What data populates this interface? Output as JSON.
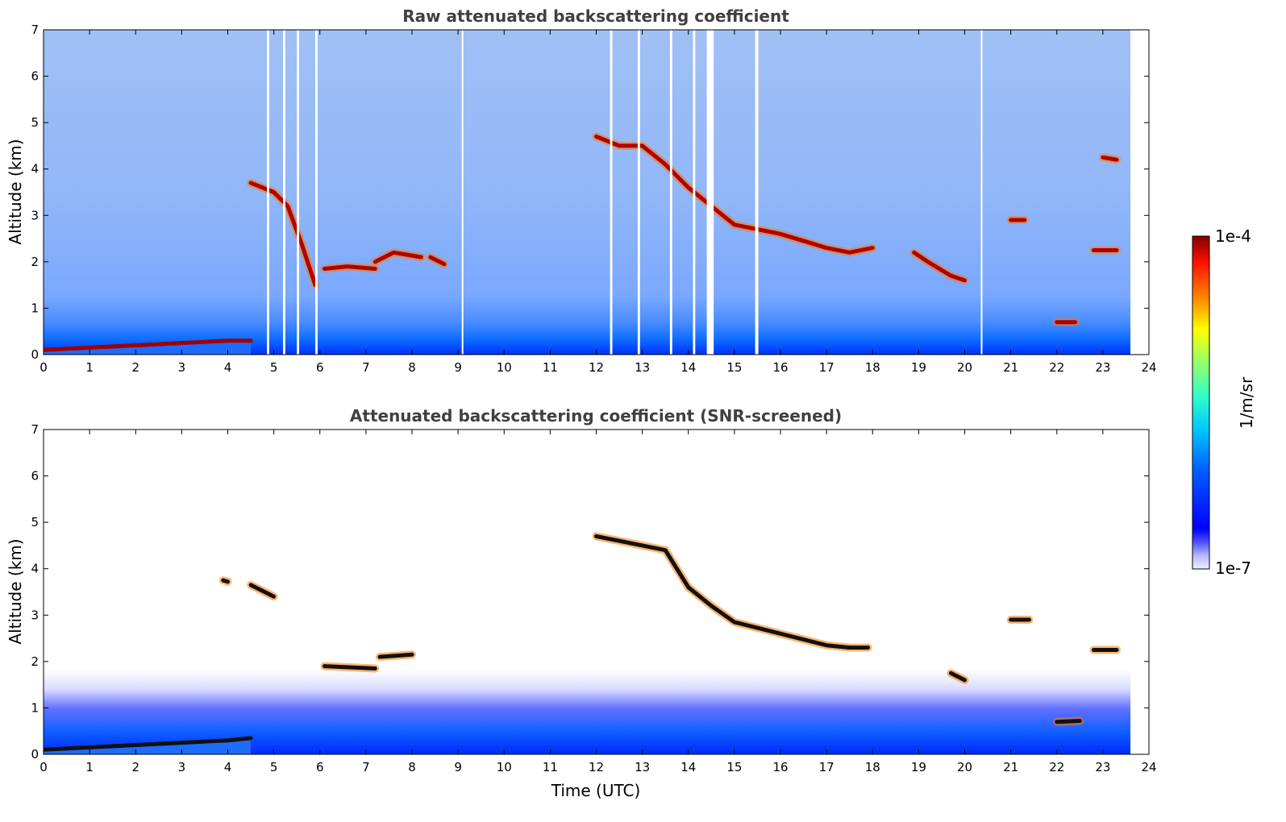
{
  "chart_data": [
    {
      "type": "heatmap",
      "title": "Raw attenuated backscattering coefficient",
      "xlabel": "",
      "ylabel": "Altitude (km)",
      "xlim": [
        0,
        24
      ],
      "ylim": [
        0,
        7
      ],
      "x_ticks": [
        "0",
        "1",
        "2",
        "3",
        "4",
        "5",
        "6",
        "7",
        "8",
        "9",
        "10",
        "11",
        "12",
        "13",
        "14",
        "15",
        "16",
        "17",
        "18",
        "19",
        "20",
        "21",
        "22",
        "23",
        "24"
      ],
      "y_ticks": [
        "0",
        "1",
        "2",
        "3",
        "4",
        "5",
        "6",
        "7"
      ],
      "data_end_time": 23.6,
      "gaps": [
        [
          4.85,
          4.9
        ],
        [
          5.2,
          5.25
        ],
        [
          5.5,
          5.55
        ],
        [
          5.9,
          5.95
        ],
        [
          9.08,
          9.1
        ],
        [
          12.3,
          12.35
        ],
        [
          12.9,
          12.95
        ],
        [
          13.6,
          13.65
        ],
        [
          14.1,
          14.15
        ],
        [
          14.4,
          14.55
        ],
        [
          15.45,
          15.52
        ],
        [
          20.35,
          20.38
        ]
      ],
      "layers": [
        {
          "kind": "aerosol_top",
          "points": [
            [
              0,
              0.1
            ],
            [
              1,
              0.15
            ],
            [
              2,
              0.2
            ],
            [
              3,
              0.25
            ],
            [
              4,
              0.3
            ],
            [
              4.5,
              0.3
            ]
          ]
        },
        {
          "kind": "cloud",
          "points": [
            [
              4.5,
              3.7
            ],
            [
              5.0,
              3.5
            ],
            [
              5.3,
              3.2
            ],
            [
              5.6,
              2.4
            ],
            [
              5.9,
              1.5
            ]
          ]
        },
        {
          "kind": "cloud",
          "points": [
            [
              6.1,
              1.85
            ],
            [
              6.6,
              1.9
            ],
            [
              7.2,
              1.85
            ]
          ]
        },
        {
          "kind": "cloud",
          "points": [
            [
              7.2,
              2.0
            ],
            [
              7.6,
              2.2
            ],
            [
              8.2,
              2.1
            ]
          ]
        },
        {
          "kind": "cloud",
          "points": [
            [
              8.4,
              2.1
            ],
            [
              8.7,
              1.95
            ]
          ]
        },
        {
          "kind": "cloud",
          "points": [
            [
              12.0,
              4.7
            ],
            [
              12.5,
              4.5
            ],
            [
              13.0,
              4.5
            ],
            [
              13.5,
              4.1
            ],
            [
              14.0,
              3.6
            ],
            [
              14.5,
              3.2
            ],
            [
              15.0,
              2.8
            ],
            [
              15.5,
              2.7
            ],
            [
              16.0,
              2.6
            ],
            [
              16.5,
              2.45
            ],
            [
              17.0,
              2.3
            ],
            [
              17.5,
              2.2
            ],
            [
              18.0,
              2.3
            ]
          ]
        },
        {
          "kind": "cloud",
          "points": [
            [
              18.9,
              2.2
            ],
            [
              19.2,
              2.0
            ],
            [
              19.7,
              1.7
            ],
            [
              20.0,
              1.6
            ]
          ]
        },
        {
          "kind": "cloud",
          "points": [
            [
              21.0,
              2.9
            ],
            [
              21.3,
              2.9
            ]
          ]
        },
        {
          "kind": "cloud",
          "points": [
            [
              22.8,
              2.25
            ],
            [
              23.3,
              2.25
            ]
          ]
        },
        {
          "kind": "cloud",
          "points": [
            [
              22.0,
              0.7
            ],
            [
              22.4,
              0.7
            ]
          ]
        },
        {
          "kind": "cloud",
          "points": [
            [
              23.0,
              4.25
            ],
            [
              23.3,
              4.2
            ]
          ]
        }
      ]
    },
    {
      "type": "heatmap",
      "title": "Attenuated backscattering coefficient (SNR-screened)",
      "xlabel": "Time (UTC)",
      "ylabel": "Altitude (km)",
      "xlim": [
        0,
        24
      ],
      "ylim": [
        0,
        7
      ],
      "x_ticks": [
        "0",
        "1",
        "2",
        "3",
        "4",
        "5",
        "6",
        "7",
        "8",
        "9",
        "10",
        "11",
        "12",
        "13",
        "14",
        "15",
        "16",
        "17",
        "18",
        "19",
        "20",
        "21",
        "22",
        "23",
        "24"
      ],
      "y_ticks": [
        "0",
        "1",
        "2",
        "3",
        "4",
        "5",
        "6",
        "7"
      ],
      "data_end_time": 23.6,
      "layers": [
        {
          "kind": "aerosol_top",
          "points": [
            [
              0,
              0.1
            ],
            [
              1,
              0.15
            ],
            [
              2,
              0.2
            ],
            [
              3,
              0.25
            ],
            [
              4,
              0.3
            ],
            [
              4.5,
              0.35
            ]
          ]
        },
        {
          "kind": "saturated",
          "points": [
            [
              3.9,
              3.75
            ],
            [
              4.0,
              3.72
            ]
          ]
        },
        {
          "kind": "saturated",
          "points": [
            [
              4.5,
              3.65
            ],
            [
              5.0,
              3.4
            ]
          ]
        },
        {
          "kind": "saturated",
          "points": [
            [
              6.1,
              1.9
            ],
            [
              7.2,
              1.85
            ]
          ]
        },
        {
          "kind": "saturated",
          "points": [
            [
              7.3,
              2.1
            ],
            [
              8.0,
              2.15
            ]
          ]
        },
        {
          "kind": "saturated",
          "points": [
            [
              12.0,
              4.7
            ],
            [
              13.5,
              4.4
            ],
            [
              14.0,
              3.6
            ],
            [
              14.5,
              3.2
            ],
            [
              15.0,
              2.85
            ],
            [
              16.0,
              2.6
            ],
            [
              17.0,
              2.35
            ],
            [
              17.5,
              2.3
            ],
            [
              17.9,
              2.3
            ]
          ]
        },
        {
          "kind": "saturated",
          "points": [
            [
              19.7,
              1.75
            ],
            [
              20.0,
              1.6
            ]
          ]
        },
        {
          "kind": "saturated",
          "points": [
            [
              21.0,
              2.9
            ],
            [
              21.4,
              2.9
            ]
          ]
        },
        {
          "kind": "saturated",
          "points": [
            [
              22.8,
              2.25
            ],
            [
              23.3,
              2.25
            ]
          ]
        },
        {
          "kind": "saturated",
          "points": [
            [
              22.0,
              0.7
            ],
            [
              22.5,
              0.72
            ]
          ]
        }
      ]
    }
  ],
  "colorbar": {
    "label": "1/m/sr",
    "max_label": "1e-4",
    "min_label": "1e-7",
    "range": [
      1e-07,
      0.0001
    ],
    "scale": "log",
    "colormap": "jet"
  },
  "colors": {
    "title": "#404040",
    "background": "#ffffff",
    "low": "#0000ff",
    "high": "#7f0000"
  }
}
